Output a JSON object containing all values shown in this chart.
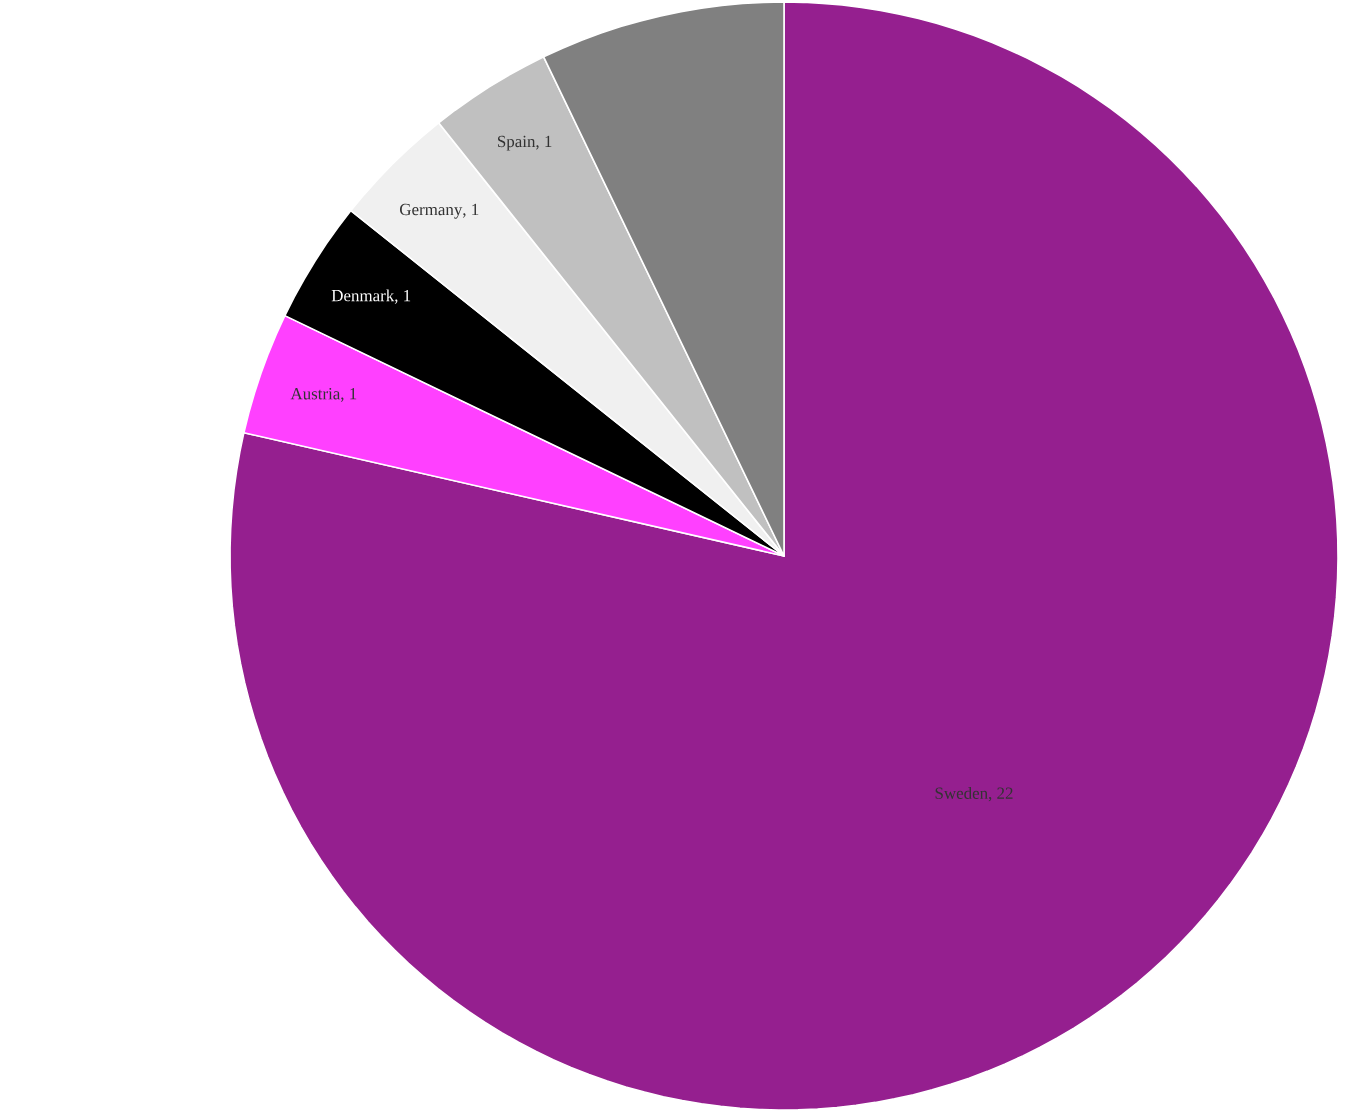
{
  "chart_data": {
    "type": "pie",
    "categories": [
      "Sweden",
      "Austria",
      "Denmark",
      "Germany",
      "Spain",
      null
    ],
    "values": [
      22,
      1,
      1,
      1,
      1,
      2
    ],
    "value_labels": [
      ", 22",
      ", 1",
      ", 1",
      ", 1",
      ", 1",
      null
    ],
    "colors": [
      "#951f8f",
      "#ff40ff",
      "#000000",
      "#f0f0f0",
      "#c0c0c0",
      "#808080"
    ]
  }
}
